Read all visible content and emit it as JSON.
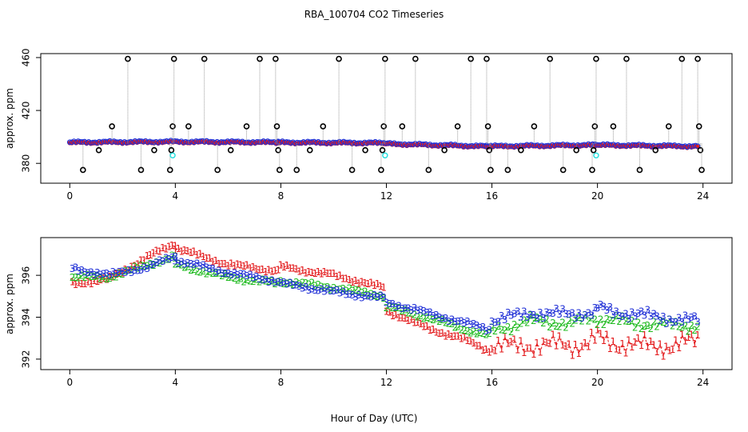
{
  "title": "RBA_100704  CO2 Timeseries",
  "xlabel": "Hour of Day (UTC)",
  "colors": {
    "series1": "#e31a1c",
    "series2": "#22bb22",
    "series3": "#1f2fd6",
    "raw_line": "#9a9a9a",
    "outlier": "#000000",
    "flag": "#22dddd",
    "frame": "#000000"
  },
  "chart_data": [
    {
      "type": "scatter",
      "id": "top",
      "ylabel": "approx. ppm",
      "xlim": [
        -1.1,
        25.1
      ],
      "ylim": [
        365,
        463
      ],
      "xticks": [
        0,
        4,
        8,
        12,
        16,
        20,
        24
      ],
      "xtick_labels": [
        "0",
        "4",
        "8",
        "12",
        "16",
        "20",
        "24"
      ],
      "yticks": [
        380,
        420,
        460
      ],
      "ytick_labels": [
        "380",
        "420",
        "460"
      ],
      "baseline_segments": [
        {
          "x": [
            0,
            4,
            7.9
          ],
          "y": [
            396,
            396.5,
            396
          ]
        },
        {
          "x": [
            7.9,
            11.9
          ],
          "y": [
            396,
            395.5
          ]
        },
        {
          "x": [
            11.9,
            15.8
          ],
          "y": [
            395,
            393
          ]
        },
        {
          "x": [
            15.8,
            19.9
          ],
          "y": [
            393,
            394
          ]
        },
        {
          "x": [
            19.9,
            23.8
          ],
          "y": [
            394,
            393
          ]
        }
      ],
      "outliers": [
        {
          "x": 0.5,
          "y": 375
        },
        {
          "x": 1.1,
          "y": 390
        },
        {
          "x": 1.6,
          "y": 408
        },
        {
          "x": 2.2,
          "y": 459
        },
        {
          "x": 2.7,
          "y": 375
        },
        {
          "x": 3.2,
          "y": 390
        },
        {
          "x": 3.8,
          "y": 375
        },
        {
          "x": 3.85,
          "y": 390
        },
        {
          "x": 3.9,
          "y": 408
        },
        {
          "x": 3.95,
          "y": 459
        },
        {
          "x": 4.5,
          "y": 408
        },
        {
          "x": 5.1,
          "y": 459
        },
        {
          "x": 5.6,
          "y": 375
        },
        {
          "x": 6.1,
          "y": 390
        },
        {
          "x": 6.7,
          "y": 408
        },
        {
          "x": 7.2,
          "y": 459
        },
        {
          "x": 7.8,
          "y": 459
        },
        {
          "x": 7.85,
          "y": 408
        },
        {
          "x": 7.9,
          "y": 390
        },
        {
          "x": 7.95,
          "y": 375
        },
        {
          "x": 8.6,
          "y": 375
        },
        {
          "x": 9.1,
          "y": 390
        },
        {
          "x": 9.6,
          "y": 408
        },
        {
          "x": 10.2,
          "y": 459
        },
        {
          "x": 10.7,
          "y": 375
        },
        {
          "x": 11.2,
          "y": 390
        },
        {
          "x": 11.8,
          "y": 375
        },
        {
          "x": 11.85,
          "y": 390
        },
        {
          "x": 11.9,
          "y": 408
        },
        {
          "x": 11.95,
          "y": 459
        },
        {
          "x": 12.6,
          "y": 408
        },
        {
          "x": 13.1,
          "y": 459
        },
        {
          "x": 13.6,
          "y": 375
        },
        {
          "x": 14.2,
          "y": 390
        },
        {
          "x": 14.7,
          "y": 408
        },
        {
          "x": 15.2,
          "y": 459
        },
        {
          "x": 15.8,
          "y": 459
        },
        {
          "x": 15.85,
          "y": 408
        },
        {
          "x": 15.9,
          "y": 390
        },
        {
          "x": 15.95,
          "y": 375
        },
        {
          "x": 16.6,
          "y": 375
        },
        {
          "x": 17.1,
          "y": 390
        },
        {
          "x": 17.6,
          "y": 408
        },
        {
          "x": 18.2,
          "y": 459
        },
        {
          "x": 18.7,
          "y": 375
        },
        {
          "x": 19.2,
          "y": 390
        },
        {
          "x": 19.8,
          "y": 375
        },
        {
          "x": 19.85,
          "y": 390
        },
        {
          "x": 19.9,
          "y": 408
        },
        {
          "x": 19.95,
          "y": 459
        },
        {
          "x": 20.6,
          "y": 408
        },
        {
          "x": 21.1,
          "y": 459
        },
        {
          "x": 21.6,
          "y": 375
        },
        {
          "x": 22.2,
          "y": 390
        },
        {
          "x": 22.7,
          "y": 408
        },
        {
          "x": 23.2,
          "y": 459
        },
        {
          "x": 23.8,
          "y": 459
        },
        {
          "x": 23.85,
          "y": 408
        },
        {
          "x": 23.9,
          "y": 390
        },
        {
          "x": 23.95,
          "y": 375
        }
      ],
      "flagged": [
        {
          "x": 3.9,
          "y": 386
        },
        {
          "x": 11.95,
          "y": 386
        },
        {
          "x": 19.95,
          "y": 386
        }
      ]
    },
    {
      "type": "scatter",
      "id": "bottom",
      "ylabel": "approx. ppm",
      "xlim": [
        -1.1,
        25.1
      ],
      "ylim": [
        391.5,
        397.8
      ],
      "xticks": [
        0,
        4,
        8,
        12,
        16,
        20,
        24
      ],
      "xtick_labels": [
        "0",
        "4",
        "8",
        "12",
        "16",
        "20",
        "24"
      ],
      "yticks": [
        392,
        394,
        396
      ],
      "ytick_labels": [
        "392",
        "394",
        "396"
      ],
      "series": [
        {
          "name": "1",
          "marker": "1",
          "segments": [
            {
              "x": [
                0.1,
                1.5,
                3.0,
                4.0
              ],
              "y": [
                395.6,
                395.8,
                396.9,
                397.5
              ]
            },
            {
              "x": [
                4.0,
                6.0,
                7.9
              ],
              "y": [
                397.3,
                396.5,
                396.2
              ]
            },
            {
              "x": [
                8.0,
                10.0,
                11.9
              ],
              "y": [
                396.4,
                396.0,
                395.4
              ]
            },
            {
              "x": [
                12.0,
                13.5,
                15.0,
                15.9
              ],
              "y": [
                394.3,
                393.5,
                392.9,
                392.4
              ]
            },
            {
              "x": [
                16.0,
                17.5,
                19.0,
                19.9
              ],
              "y": [
                392.5,
                392.7,
                392.6,
                393.0
              ]
            },
            {
              "x": [
                20.0,
                21.5,
                23.0,
                23.8
              ],
              "y": [
                393.0,
                392.6,
                392.7,
                392.8
              ]
            }
          ]
        },
        {
          "name": "2",
          "marker": "2",
          "segments": [
            {
              "x": [
                0.1,
                1.5,
                3.0,
                4.0
              ],
              "y": [
                395.9,
                395.9,
                396.5,
                396.9
              ]
            },
            {
              "x": [
                4.0,
                6.0,
                7.9
              ],
              "y": [
                396.5,
                395.9,
                395.6
              ]
            },
            {
              "x": [
                8.0,
                10.0,
                11.9
              ],
              "y": [
                395.7,
                395.4,
                395.0
              ]
            },
            {
              "x": [
                12.0,
                13.5,
                15.0,
                15.9
              ],
              "y": [
                394.5,
                394.0,
                393.4,
                393.1
              ]
            },
            {
              "x": [
                16.0,
                17.5,
                19.0,
                19.9
              ],
              "y": [
                393.4,
                393.8,
                393.7,
                393.9
              ]
            },
            {
              "x": [
                20.0,
                21.5,
                23.0,
                23.8
              ],
              "y": [
                393.9,
                393.7,
                393.6,
                393.6
              ]
            }
          ]
        },
        {
          "name": "3",
          "marker": "3",
          "segments": [
            {
              "x": [
                0.1,
                1.5,
                3.0,
                4.0
              ],
              "y": [
                396.3,
                396.0,
                396.4,
                396.9
              ]
            },
            {
              "x": [
                4.0,
                6.0,
                7.9
              ],
              "y": [
                396.7,
                396.1,
                395.7
              ]
            },
            {
              "x": [
                8.0,
                10.0,
                11.9
              ],
              "y": [
                395.6,
                395.2,
                394.9
              ]
            },
            {
              "x": [
                12.0,
                13.5,
                15.0,
                15.9
              ],
              "y": [
                394.7,
                394.2,
                393.7,
                393.4
              ]
            },
            {
              "x": [
                16.0,
                17.5,
                19.0,
                19.9
              ],
              "y": [
                393.8,
                394.2,
                394.1,
                394.3
              ]
            },
            {
              "x": [
                20.0,
                21.5,
                23.0,
                23.8
              ],
              "y": [
                394.4,
                394.1,
                393.9,
                393.8
              ]
            }
          ]
        }
      ]
    }
  ]
}
